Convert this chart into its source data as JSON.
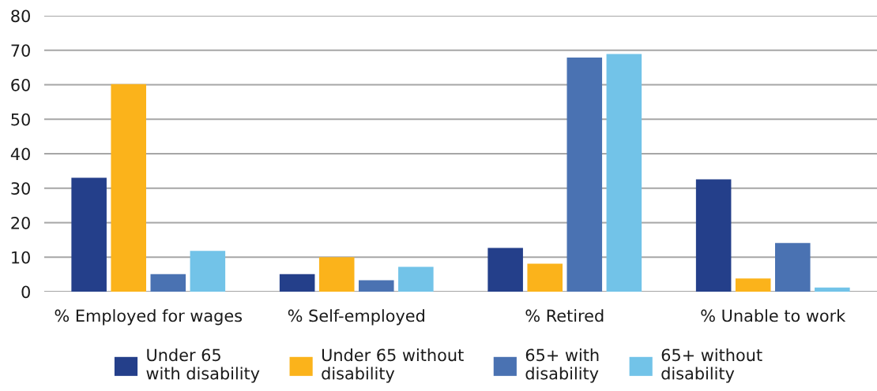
{
  "chart_data": {
    "type": "bar",
    "categories": [
      "% Employed for wages",
      "% Self-employed",
      "% Retired",
      "% Unable to work"
    ],
    "series": [
      {
        "name": "Under 65\nwith disability",
        "color": "#243f8a",
        "values": [
          33.0,
          5.1,
          12.7,
          32.6
        ]
      },
      {
        "name": "Under 65 without\ndisability",
        "color": "#fbb31b",
        "values": [
          60.2,
          10.0,
          8.1,
          3.8
        ]
      },
      {
        "name": "65+ with\ndisability",
        "color": "#4a72b2",
        "values": [
          5.1,
          3.3,
          67.9,
          14.1
        ]
      },
      {
        "name": "65+ without\ndisability",
        "color": "#72c3e8",
        "values": [
          11.8,
          7.2,
          68.9,
          1.2
        ]
      }
    ],
    "ylim": [
      0,
      80
    ],
    "yticks": [
      0,
      10,
      20,
      30,
      40,
      50,
      60,
      70,
      80
    ],
    "grid": "y",
    "legend": "bottom"
  }
}
